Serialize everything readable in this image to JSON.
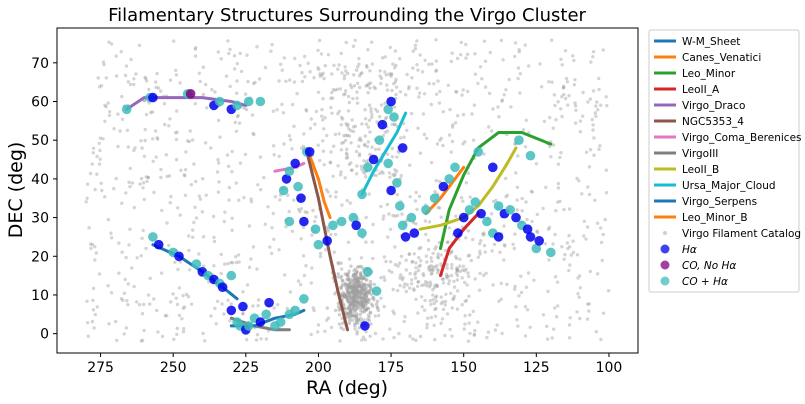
{
  "chart_data": {
    "type": "scatter",
    "title": "Filamentary Structures Surrounding the Virgo Cluster",
    "xlabel": "RA (deg)",
    "ylabel": "DEC (deg)",
    "xlim": [
      290,
      90
    ],
    "ylim": [
      -5,
      79
    ],
    "xticks": [
      275,
      250,
      225,
      200,
      175,
      150,
      125,
      100
    ],
    "yticks": [
      0,
      10,
      20,
      30,
      40,
      50,
      60,
      70
    ],
    "grid": false,
    "legend_position": "outside-right",
    "colors": {
      "catalog": "#a0a0a0",
      "halpha": "#0000ee",
      "co_no_halpha": "#800080",
      "co_halpha": "#40bcbc"
    },
    "filaments": [
      {
        "name": "W-M_Sheet",
        "color": "#1f77b4",
        "points": [
          [
            257,
            23
          ],
          [
            248,
            20
          ],
          [
            240,
            16
          ],
          [
            233,
            12
          ],
          [
            228,
            9
          ]
        ]
      },
      {
        "name": "Canes_Venatici",
        "color": "#ff7f0e",
        "points": [
          [
            203,
            46
          ],
          [
            200,
            40
          ],
          [
            198,
            34
          ],
          [
            196,
            30
          ]
        ]
      },
      {
        "name": "Leo_Minor",
        "color": "#2ca02c",
        "points": [
          [
            158,
            22
          ],
          [
            155,
            32
          ],
          [
            150,
            41
          ],
          [
            145,
            48
          ],
          [
            138,
            52
          ],
          [
            130,
            52
          ],
          [
            120,
            49
          ]
        ]
      },
      {
        "name": "LeoII_A",
        "color": "#d62728",
        "points": [
          [
            158,
            15
          ],
          [
            155,
            22
          ],
          [
            150,
            27
          ],
          [
            145,
            31
          ]
        ]
      },
      {
        "name": "Virgo_Draco",
        "color": "#9467bd",
        "points": [
          [
            266,
            58
          ],
          [
            260,
            61
          ],
          [
            250,
            61
          ],
          [
            240,
            61
          ],
          [
            230,
            60
          ],
          [
            225,
            59
          ]
        ]
      },
      {
        "name": "NGC5353_4",
        "color": "#8c564b",
        "points": [
          [
            204,
            47
          ],
          [
            200,
            35
          ],
          [
            196,
            20
          ],
          [
            193,
            10
          ],
          [
            190,
            1
          ]
        ]
      },
      {
        "name": "Virgo_Coma_Berenices",
        "color": "#e377c2",
        "points": [
          [
            215,
            42
          ],
          [
            208,
            43
          ],
          [
            205,
            44
          ]
        ]
      },
      {
        "name": "VirgoIII",
        "color": "#7f7f7f",
        "points": [
          [
            230,
            4
          ],
          [
            222,
            2
          ],
          [
            215,
            1
          ],
          [
            210,
            1
          ]
        ]
      },
      {
        "name": "LeoII_B",
        "color": "#bcbd22",
        "points": [
          [
            165,
            27
          ],
          [
            158,
            28
          ],
          [
            150,
            30
          ],
          [
            145,
            33
          ],
          [
            140,
            38
          ],
          [
            135,
            44
          ],
          [
            132,
            48
          ]
        ]
      },
      {
        "name": "Ursa_Major_Cloud",
        "color": "#17becf",
        "points": [
          [
            185,
            36
          ],
          [
            181,
            42
          ],
          [
            177,
            47
          ],
          [
            173,
            52
          ],
          [
            170,
            57
          ]
        ]
      },
      {
        "name": "Virgo_Serpens",
        "color": "#1f77b4",
        "points": [
          [
            230,
            2
          ],
          [
            222,
            2
          ],
          [
            215,
            4
          ],
          [
            208,
            5
          ],
          [
            205,
            6
          ]
        ]
      },
      {
        "name": "Leo_Minor_B",
        "color": "#ff7f0e",
        "points": [
          [
            163,
            31
          ],
          [
            158,
            35
          ],
          [
            153,
            40
          ],
          [
            150,
            43
          ]
        ]
      }
    ],
    "scatter_series": [
      {
        "name": "Virgo Filament Catalog",
        "marker": "small-dot",
        "color": "#a0a0a0"
      },
      {
        "name": "Hα",
        "marker": "circle",
        "color": "#0000ee"
      },
      {
        "name": "CO, No Hα",
        "marker": "circle",
        "color": "#800080"
      },
      {
        "name": "CO + Hα",
        "marker": "circle",
        "color": "#40bcbc"
      }
    ],
    "members": [
      [
        266,
        58,
        "co_halpha"
      ],
      [
        258,
        61,
        "co_halpha"
      ],
      [
        257,
        61,
        "halpha"
      ],
      [
        245,
        62,
        "co_halpha"
      ],
      [
        244,
        62,
        "co_no_halpha"
      ],
      [
        236,
        59,
        "halpha"
      ],
      [
        234,
        60,
        "co_halpha"
      ],
      [
        230,
        58,
        "halpha"
      ],
      [
        228,
        59,
        "co_halpha"
      ],
      [
        224,
        60,
        "co_halpha"
      ],
      [
        220,
        60,
        "co_halpha"
      ],
      [
        257,
        25,
        "co_halpha"
      ],
      [
        255,
        23,
        "halpha"
      ],
      [
        250,
        21,
        "co_halpha"
      ],
      [
        248,
        20,
        "halpha"
      ],
      [
        242,
        18,
        "co_halpha"
      ],
      [
        240,
        16,
        "halpha"
      ],
      [
        238,
        15,
        "co_halpha"
      ],
      [
        236,
        14,
        "halpha"
      ],
      [
        234,
        13,
        "co_halpha"
      ],
      [
        233,
        12,
        "halpha"
      ],
      [
        230,
        15,
        "co_halpha"
      ],
      [
        230,
        6,
        "halpha"
      ],
      [
        228,
        3,
        "co_halpha"
      ],
      [
        227,
        2,
        "co_halpha"
      ],
      [
        225,
        1,
        "halpha"
      ],
      [
        224,
        2,
        "co_halpha"
      ],
      [
        222,
        4,
        "co_halpha"
      ],
      [
        220,
        3,
        "halpha"
      ],
      [
        218,
        5,
        "co_halpha"
      ],
      [
        217,
        8,
        "halpha"
      ],
      [
        215,
        2,
        "co_halpha"
      ],
      [
        213,
        3,
        "co_halpha"
      ],
      [
        210,
        5,
        "co_halpha"
      ],
      [
        208,
        6,
        "co_halpha"
      ],
      [
        205,
        9,
        "co_halpha"
      ],
      [
        226,
        7,
        "halpha"
      ],
      [
        212,
        37,
        "co_halpha"
      ],
      [
        211,
        40,
        "halpha"
      ],
      [
        210,
        42,
        "co_halpha"
      ],
      [
        208,
        44,
        "halpha"
      ],
      [
        207,
        38,
        "co_halpha"
      ],
      [
        206,
        35,
        "halpha"
      ],
      [
        204,
        47,
        "co_halpha"
      ],
      [
        203,
        47,
        "halpha"
      ],
      [
        210,
        29,
        "co_halpha"
      ],
      [
        205,
        29,
        "halpha"
      ],
      [
        201,
        27,
        "co_halpha"
      ],
      [
        200,
        23,
        "co_halpha"
      ],
      [
        197,
        24,
        "halpha"
      ],
      [
        195,
        28,
        "co_halpha"
      ],
      [
        192,
        29,
        "co_halpha"
      ],
      [
        188,
        30,
        "co_halpha"
      ],
      [
        187,
        28,
        "halpha"
      ],
      [
        185,
        26,
        "co_halpha"
      ],
      [
        185,
        36,
        "co_halpha"
      ],
      [
        183,
        43,
        "co_halpha"
      ],
      [
        181,
        45,
        "halpha"
      ],
      [
        179,
        50,
        "co_halpha"
      ],
      [
        178,
        54,
        "halpha"
      ],
      [
        176,
        58,
        "co_halpha"
      ],
      [
        175,
        60,
        "halpha"
      ],
      [
        174,
        56,
        "co_halpha"
      ],
      [
        176,
        44,
        "co_halpha"
      ],
      [
        175,
        37,
        "halpha"
      ],
      [
        173,
        39,
        "co_halpha"
      ],
      [
        172,
        33,
        "co_halpha"
      ],
      [
        171,
        28,
        "co_halpha"
      ],
      [
        170,
        25,
        "halpha"
      ],
      [
        168,
        30,
        "co_halpha"
      ],
      [
        167,
        26,
        "halpha"
      ],
      [
        171,
        48,
        "halpha"
      ],
      [
        183,
        16,
        "co_halpha"
      ],
      [
        184,
        2,
        "halpha"
      ],
      [
        180,
        11,
        "co_halpha"
      ],
      [
        163,
        32,
        "co_halpha"
      ],
      [
        160,
        35,
        "co_halpha"
      ],
      [
        157,
        38,
        "halpha"
      ],
      [
        155,
        40,
        "co_halpha"
      ],
      [
        153,
        43,
        "co_halpha"
      ],
      [
        150,
        30,
        "halpha"
      ],
      [
        148,
        32,
        "co_halpha"
      ],
      [
        146,
        34,
        "co_halpha"
      ],
      [
        144,
        31,
        "halpha"
      ],
      [
        142,
        29,
        "co_halpha"
      ],
      [
        140,
        26,
        "co_halpha"
      ],
      [
        138,
        33,
        "co_halpha"
      ],
      [
        136,
        31,
        "halpha"
      ],
      [
        134,
        32,
        "co_halpha"
      ],
      [
        132,
        30,
        "halpha"
      ],
      [
        130,
        28,
        "co_halpha"
      ],
      [
        128,
        27,
        "halpha"
      ],
      [
        127,
        25,
        "halpha"
      ],
      [
        125,
        22,
        "co_halpha"
      ],
      [
        124,
        24,
        "halpha"
      ],
      [
        120,
        21,
        "co_halpha"
      ],
      [
        138,
        25,
        "halpha"
      ],
      [
        145,
        47,
        "co_halpha"
      ],
      [
        140,
        43,
        "halpha"
      ],
      [
        131,
        50,
        "co_halpha"
      ],
      [
        127,
        46,
        "co_halpha"
      ],
      [
        152,
        26,
        "halpha"
      ]
    ]
  }
}
